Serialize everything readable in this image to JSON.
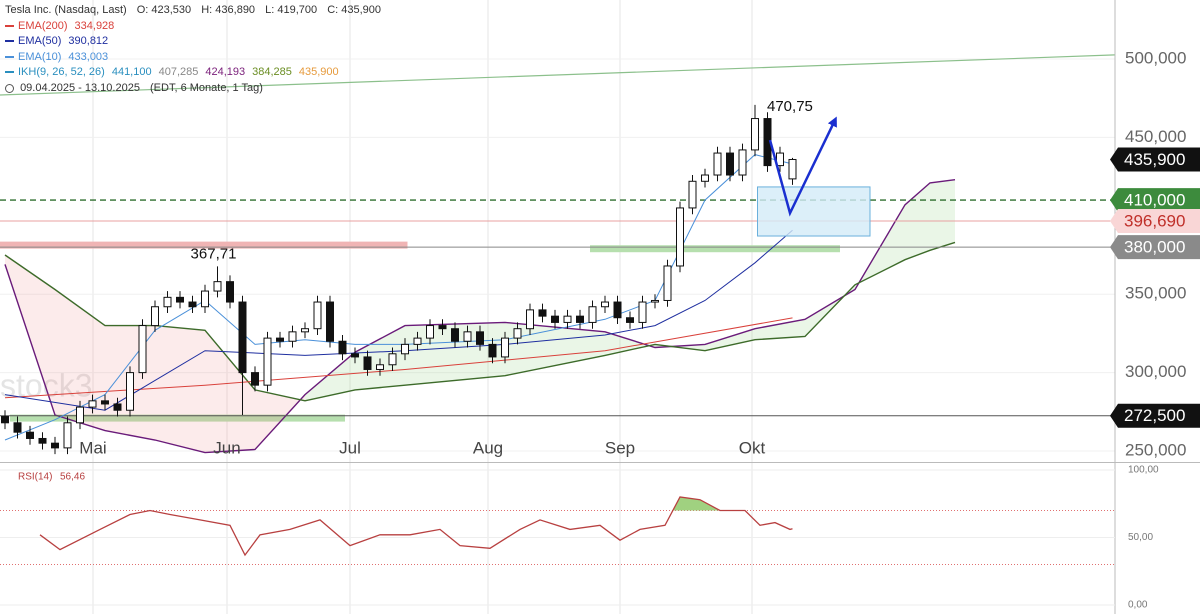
{
  "header": {
    "title": "Tesla Inc. (Nasdaq, Last)",
    "ohlc": [
      "O: 423,530",
      "H: 436,890",
      "L: 419,700",
      "C: 435,900"
    ],
    "range": "09.04.2025 - 13.10.2025",
    "range_note": "(EDT, 6 Monate, 1 Tag)",
    "watermark": "stock3"
  },
  "chart_data": [
    {
      "type": "candlestick",
      "xlim": [
        -0.4,
        88.8
      ],
      "ylim": [
        243,
        537.6
      ],
      "xticks": [
        {
          "value": 7.04,
          "label": "Mai"
        },
        {
          "value": 17.76,
          "label": "Jun"
        },
        {
          "value": 27.6,
          "label": "Jul"
        },
        {
          "value": 38.64,
          "label": "Aug"
        },
        {
          "value": 49.2,
          "label": "Sep"
        },
        {
          "value": 59.76,
          "label": "Okt"
        }
      ],
      "yticks": [
        {
          "value": 250,
          "label": "250,000"
        },
        {
          "value": 300,
          "label": "300,000"
        },
        {
          "value": 350,
          "label": "350,000"
        },
        {
          "value": 450,
          "label": "450,000"
        },
        {
          "value": 500,
          "label": "500,000"
        }
      ],
      "grid": true,
      "candles": {
        "open": [
          272,
          268,
          262,
          258,
          255,
          252,
          268,
          278,
          282,
          280,
          276,
          300,
          330,
          342,
          348,
          345,
          342,
          352,
          358,
          345,
          300,
          292,
          322,
          320,
          326,
          328,
          345,
          320,
          312,
          310,
          302,
          305,
          312,
          318,
          322,
          330,
          328,
          320,
          326,
          318,
          310,
          322,
          328,
          340,
          336,
          332,
          336,
          332,
          342,
          345,
          335,
          332,
          345,
          346,
          368,
          405,
          422,
          426,
          440,
          426,
          442,
          462,
          432,
          423.53
        ],
        "high": [
          276,
          272,
          266,
          262,
          259,
          272,
          282,
          286,
          286,
          284,
          304,
          334,
          346,
          352,
          352,
          349,
          356,
          367.71,
          362,
          349,
          304,
          326,
          326,
          330,
          332,
          349,
          349,
          324,
          316,
          314,
          309,
          316,
          322,
          326,
          334,
          334,
          332,
          330,
          330,
          322,
          326,
          332,
          344,
          344,
          340,
          340,
          340,
          346,
          349,
          349,
          339,
          349,
          350,
          372,
          409,
          426,
          430,
          444,
          444,
          446,
          470.75,
          466,
          444,
          436.89
        ],
        "low": [
          264,
          258,
          254,
          251,
          248,
          248,
          264,
          274,
          276,
          272,
          272,
          296,
          326,
          338,
          341,
          338,
          338,
          348,
          341,
          273,
          288,
          288,
          316,
          316,
          322,
          324,
          316,
          308,
          306,
          298,
          298,
          301,
          308,
          314,
          318,
          324,
          316,
          316,
          314,
          306,
          306,
          318,
          324,
          332,
          328,
          328,
          328,
          328,
          338,
          331,
          328,
          328,
          341,
          342,
          364,
          401,
          418,
          422,
          422,
          422,
          438,
          428,
          428,
          419.7
        ],
        "close": [
          268,
          262,
          258,
          255,
          252,
          268,
          278,
          282,
          280,
          276,
          300,
          330,
          342,
          348,
          345,
          342,
          352,
          358,
          345,
          300,
          292,
          322,
          320,
          326,
          328,
          345,
          320,
          312,
          310,
          302,
          305,
          312,
          318,
          322,
          330,
          328,
          320,
          326,
          318,
          310,
          322,
          328,
          340,
          336,
          332,
          336,
          332,
          342,
          345,
          335,
          332,
          345,
          346,
          368,
          405,
          422,
          426,
          440,
          426,
          442,
          462,
          432,
          440,
          435.9
        ]
      },
      "series": [
        {
          "name": "EMA(200)",
          "legend_value": "334,928",
          "color": "#d9413b",
          "x": [
            0,
            16,
            32,
            48,
            63
          ],
          "values": [
            284,
            292,
            302,
            314,
            334.9
          ]
        },
        {
          "name": "EMA(50)",
          "legend_value": "390,812",
          "color": "#1f2fa0",
          "x": [
            0,
            8,
            16,
            24,
            32,
            40,
            48,
            52,
            56,
            60,
            63
          ],
          "values": [
            286,
            276,
            314,
            311,
            314,
            318,
            324,
            330,
            346,
            370,
            390.8
          ]
        },
        {
          "name": "EMA(10)",
          "legend_value": "433,003",
          "color": "#4a90d9",
          "x": [
            0,
            4,
            8,
            12,
            16,
            20,
            24,
            28,
            32,
            40,
            48,
            52,
            56,
            60,
            63
          ],
          "values": [
            257,
            270,
            286,
            327,
            346,
            318,
            321,
            318,
            318,
            321,
            334,
            346,
            410,
            439,
            433
          ]
        }
      ],
      "ichimoku": {
        "name": "IKH(9, 26, 52, 26)",
        "color": "#2a8fbf",
        "legend_values": [
          "441,100",
          "407,285",
          "424,193",
          "384,285",
          "435,900"
        ],
        "legend_colors": [
          "#2a8fbf",
          "#888888",
          "#7a1f7a",
          "#6b8e23",
          "#e69a3c"
        ],
        "x": [
          0,
          4,
          8,
          12,
          16,
          20,
          24,
          28,
          32,
          40,
          48,
          52,
          56,
          60,
          64,
          68,
          72,
          74,
          76
        ],
        "span_a": [
          369,
          273,
          263,
          257,
          249,
          251,
          286,
          313,
          330,
          332,
          326,
          316,
          318,
          328,
          334,
          353,
          407,
          421,
          423
        ],
        "span_b": [
          375,
          353,
          330,
          330,
          327,
          289,
          282,
          289,
          292,
          298,
          311,
          318,
          314,
          321,
          323,
          356,
          372,
          378,
          383
        ],
        "colors": [
          "#6a1b7a",
          "#3d6b2a"
        ]
      },
      "levels": [
        {
          "value": 435.9,
          "label": "435,900",
          "style": "none",
          "color": "#000000",
          "box": "#111111",
          "text": "#ffffff"
        },
        {
          "value": 410,
          "label": "410,000",
          "style": "dashed",
          "color": "#2e6e2e",
          "box": "#3d8b3d",
          "text": "#ffffff"
        },
        {
          "value": 396.69,
          "label": "396,690",
          "style": "solid",
          "color": "#e8a0a0",
          "box": "#f9d6d6",
          "text": "#c0302a"
        },
        {
          "value": 380,
          "label": "380,000",
          "style": "solid",
          "color": "#888888",
          "box": "#8a8a8a",
          "text": "#ffffff"
        },
        {
          "value": 272.5,
          "label": "272,500",
          "style": "solid",
          "color": "#555555",
          "box": "#111111",
          "text": "#ffffff"
        }
      ],
      "zones": [
        {
          "y": 381.3,
          "x": [
            -0.4,
            32.2
          ],
          "color": "#f0b4b4"
        },
        {
          "y": 379,
          "x": [
            46.8,
            66.8
          ],
          "color": "#b6dfae"
        },
        {
          "y": 271,
          "x": [
            0.4,
            27.2
          ],
          "color": "#b6dfae"
        }
      ],
      "trendline": {
        "x": [
          -0.4,
          88.8
        ],
        "y": [
          477,
          502.6
        ],
        "color": "#8cc08c"
      },
      "box": {
        "x": [
          60.2,
          69.2
        ],
        "y": [
          387.1,
          418.4
        ],
        "color": "#d3ebf8",
        "stroke": "#6ab0dc"
      },
      "arrow": {
        "x": [
          61.2,
          62.8,
          66.4
        ],
        "y": [
          448.3,
          401.7,
          461
        ],
        "color": "#1a2fd0"
      },
      "annotations": [
        {
          "label": "470,75",
          "x": 60,
          "value": 470.75,
          "position": "right"
        },
        {
          "label": "367,71",
          "x": 17,
          "value": 367.71,
          "position": "above"
        }
      ]
    },
    {
      "type": "line",
      "xlim": [
        -0.4,
        88.8
      ],
      "ylim": [
        -6.7,
        105.2
      ],
      "yticks": [
        {
          "value": 0,
          "label": "0,00"
        },
        {
          "value": 50,
          "label": "50,00"
        },
        {
          "value": 100,
          "label": "100,00"
        }
      ],
      "levels": [
        70,
        30
      ],
      "level_color": "#e07070",
      "fill_above": 70,
      "fill_color": "#8fc96a",
      "series": [
        {
          "name": "RSI(14)",
          "legend_value": "56,46",
          "color": "#b84040",
          "x": [
            2.8,
            4.4,
            7.6,
            10,
            11.6,
            13.2,
            15.6,
            18,
            19.2,
            20.4,
            22.8,
            25.2,
            27.6,
            30,
            32.4,
            34.8,
            36.4,
            38.8,
            41.2,
            42.8,
            45.2,
            47.6,
            49.2,
            50.8,
            52.8,
            54,
            55.6,
            57.2,
            59.2,
            60.4,
            61.6,
            62.8,
            63
          ],
          "values": [
            52,
            41,
            56,
            67,
            70,
            67,
            63,
            59,
            37,
            52,
            56,
            63,
            44,
            52,
            52,
            56,
            44,
            42,
            56,
            63,
            56,
            59,
            48,
            56,
            59,
            80,
            78,
            70,
            70,
            59,
            61,
            56,
            56.46
          ]
        }
      ]
    }
  ]
}
